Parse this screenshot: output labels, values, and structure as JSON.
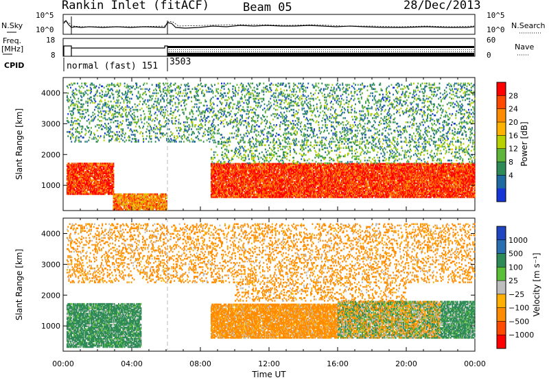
{
  "header": {
    "station": "Rankin Inlet (fitACF)",
    "beam": "Beam 05",
    "date": "28/Dec/2013"
  },
  "noise_panel": {
    "left_label": "N.Sky",
    "right_label": "N.Search",
    "right_line_style": "dotted",
    "left_ticks": [
      "10^5",
      "10^0"
    ],
    "right_ticks": [
      "10^5",
      "10^0"
    ]
  },
  "freq_panel": {
    "left_label_line1": "Freq.",
    "left_label_line2": "[MHz]",
    "right_label": "Nave",
    "right_line_style": "dotted",
    "left_ticks": [
      "18",
      "8"
    ],
    "right_ticks": [
      "60",
      "0"
    ]
  },
  "cpid": {
    "label": "CPID",
    "segments": [
      {
        "name": "normal (fast) 151",
        "start_hour": 0.0,
        "end_hour": 6.0
      },
      {
        "name": "3503",
        "start_hour": 6.0,
        "end_hour": 24.0
      }
    ]
  },
  "power_panel": {
    "ylabel": "Slant Range [km]",
    "yticks": [
      "4000",
      "3000",
      "2000",
      "1000"
    ],
    "colorbar_label": "Power [dB]",
    "colorbar_ticks": [
      "28",
      "24",
      "20",
      "16",
      "12",
      "8",
      "4"
    ],
    "colorbar_colors": [
      "#ff0000",
      "#ff4a00",
      "#ff8c00",
      "#ffb300",
      "#b7d200",
      "#5fb43c",
      "#2e8b57",
      "#1f6aa0",
      "#1535d6"
    ]
  },
  "velocity_panel": {
    "ylabel": "Slant Range [km]",
    "yticks": [
      "4000",
      "3000",
      "2000",
      "1000"
    ],
    "colorbar_label": "Velocity [m s⁻¹]",
    "colorbar_ticks": [
      "1000",
      "500",
      "100",
      "25",
      "−25",
      "−100",
      "−500",
      "−1000"
    ],
    "colorbar_colors": [
      "#2045c0",
      "#2a6fb0",
      "#2e8b57",
      "#5cbf3a",
      "#bdbdbd",
      "#ffb000",
      "#ff8c00",
      "#ff4a00",
      "#ff0000"
    ]
  },
  "xaxis": {
    "label": "Time UT",
    "ticks": [
      "00:00",
      "04:00",
      "08:00",
      "12:00",
      "16:00",
      "20:00",
      "00:00"
    ]
  },
  "chart_data": [
    {
      "type": "heatmap",
      "title": "Power",
      "xlabel": "Time UT",
      "ylabel": "Slant Range [km]",
      "xlim": [
        0,
        24
      ],
      "ylim": [
        180,
        4500
      ],
      "colorbar": {
        "label": "Power [dB]",
        "range": [
          0,
          30
        ]
      },
      "regions": [
        {
          "x": [
            0.2,
            2.9
          ],
          "y": [
            700,
            1700
          ],
          "power_db": 28
        },
        {
          "x": [
            2.9,
            6.0
          ],
          "y": [
            200,
            700
          ],
          "power_db": 22
        },
        {
          "x": [
            8.6,
            24.0
          ],
          "y": [
            600,
            1700
          ],
          "power_db": 28
        },
        {
          "x": [
            8.6,
            24.0
          ],
          "y": [
            1700,
            2400
          ],
          "power_db": 10
        },
        {
          "x": [
            0.2,
            24.0
          ],
          "y": [
            2400,
            4300
          ],
          "power_db": 8
        }
      ]
    },
    {
      "type": "heatmap",
      "title": "Velocity",
      "xlabel": "Time UT",
      "ylabel": "Slant Range [km]",
      "xlim": [
        0,
        24
      ],
      "ylim": [
        180,
        4500
      ],
      "colorbar": {
        "label": "Velocity [m s⁻¹]",
        "range": [
          -1000,
          1000
        ]
      },
      "regions": [
        {
          "x": [
            0.2,
            4.5
          ],
          "y": [
            300,
            1700
          ],
          "velocity_ms": 150
        },
        {
          "x": [
            8.6,
            16.0
          ],
          "y": [
            600,
            1700
          ],
          "velocity_ms": -150
        },
        {
          "x": [
            16.0,
            22.0
          ],
          "y": [
            600,
            1800
          ],
          "velocity_ms": 0
        },
        {
          "x": [
            22.0,
            24.0
          ],
          "y": [
            600,
            1800
          ],
          "velocity_ms": 150
        },
        {
          "x": [
            10.0,
            20.0
          ],
          "y": [
            1800,
            2400
          ],
          "velocity_ms": -150
        },
        {
          "x": [
            0.2,
            24.0
          ],
          "y": [
            2400,
            4300
          ],
          "velocity_ms": -150
        }
      ]
    },
    {
      "type": "line",
      "title": "N.Sky",
      "xlim": [
        0,
        24
      ],
      "ylim": [
        "10^0",
        "10^5"
      ],
      "series": [
        {
          "name": "N.Sky",
          "values": []
        },
        {
          "name": "N.Search",
          "values": []
        }
      ]
    }
  ]
}
